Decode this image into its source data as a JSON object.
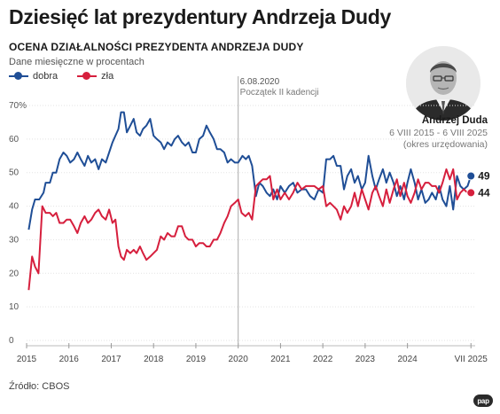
{
  "title": "Dziesięć lat prezydentury Andrzeja Dudy",
  "subtitle": "OCENA DZIAŁALNOŚCI PREZYDENTA ANDRZEJA DUDY",
  "note": "Dane miesięczne w procentach",
  "legend": [
    {
      "label": "dobra",
      "color": "#1f4e96"
    },
    {
      "label": "zła",
      "color": "#d61f3d"
    }
  ],
  "person": {
    "name": "Andrzej Duda",
    "term": "6 VIII 2015 - 6 VIII 2025",
    "office": "(okres urzędowania)"
  },
  "source": "Źródło: CBOS",
  "agency_logo": "pap",
  "chart_data": {
    "type": "line",
    "ylim": [
      0,
      70
    ],
    "yticks": [
      0,
      10,
      20,
      30,
      40,
      50,
      60,
      70
    ],
    "ytick_labels": [
      "0",
      "10",
      "20",
      "30",
      "40",
      "50",
      "60",
      "70%"
    ],
    "xlim": [
      2015.0,
      2025.6
    ],
    "xticks": [
      {
        "label": "2015",
        "x": 2015.0
      },
      {
        "label": "2016",
        "x": 2016.0
      },
      {
        "label": "2017",
        "x": 2017.0
      },
      {
        "label": "2018",
        "x": 2018.0
      },
      {
        "label": "2019",
        "x": 2019.0
      },
      {
        "label": "2020",
        "x": 2020.0
      },
      {
        "label": "2021",
        "x": 2021.0
      },
      {
        "label": "2022",
        "x": 2022.0
      },
      {
        "label": "2023",
        "x": 2023.0
      },
      {
        "label": "2024",
        "x": 2024.0
      },
      {
        "label": "VII 2025",
        "x": 2025.5
      }
    ],
    "annotation": {
      "date": "6.08.2020",
      "text": "Początek II kadencji",
      "x": 2020.0
    },
    "series": [
      {
        "name": "dobra",
        "color": "#1f4e96",
        "end_label": "49",
        "points": [
          [
            2015.05,
            33
          ],
          [
            2015.13,
            39
          ],
          [
            2015.2,
            42
          ],
          [
            2015.3,
            42
          ],
          [
            2015.4,
            44
          ],
          [
            2015.45,
            47
          ],
          [
            2015.55,
            47
          ],
          [
            2015.62,
            50
          ],
          [
            2015.7,
            50
          ],
          [
            2015.78,
            54
          ],
          [
            2015.87,
            56
          ],
          [
            2015.95,
            55
          ],
          [
            2016.03,
            53
          ],
          [
            2016.12,
            54
          ],
          [
            2016.2,
            56
          ],
          [
            2016.28,
            54
          ],
          [
            2016.37,
            52
          ],
          [
            2016.45,
            55
          ],
          [
            2016.53,
            53
          ],
          [
            2016.62,
            54
          ],
          [
            2016.7,
            51
          ],
          [
            2016.78,
            54
          ],
          [
            2016.87,
            53
          ],
          [
            2016.95,
            56
          ],
          [
            2017.03,
            59
          ],
          [
            2017.1,
            61
          ],
          [
            2017.17,
            63
          ],
          [
            2017.23,
            68
          ],
          [
            2017.3,
            68
          ],
          [
            2017.37,
            62
          ],
          [
            2017.45,
            64
          ],
          [
            2017.53,
            66
          ],
          [
            2017.6,
            62
          ],
          [
            2017.68,
            61
          ],
          [
            2017.75,
            63
          ],
          [
            2017.83,
            64
          ],
          [
            2017.92,
            66
          ],
          [
            2018.0,
            61
          ],
          [
            2018.08,
            60
          ],
          [
            2018.17,
            59
          ],
          [
            2018.25,
            57
          ],
          [
            2018.33,
            59
          ],
          [
            2018.42,
            58
          ],
          [
            2018.5,
            60
          ],
          [
            2018.58,
            61
          ],
          [
            2018.67,
            59
          ],
          [
            2018.75,
            58
          ],
          [
            2018.83,
            59
          ],
          [
            2018.92,
            56
          ],
          [
            2019.0,
            56
          ],
          [
            2019.08,
            60
          ],
          [
            2019.17,
            61
          ],
          [
            2019.25,
            64
          ],
          [
            2019.33,
            62
          ],
          [
            2019.42,
            60
          ],
          [
            2019.5,
            57
          ],
          [
            2019.58,
            57
          ],
          [
            2019.67,
            56
          ],
          [
            2019.75,
            53
          ],
          [
            2019.83,
            54
          ],
          [
            2019.92,
            53
          ],
          [
            2020.0,
            53
          ],
          [
            2020.1,
            55
          ],
          [
            2020.18,
            54
          ],
          [
            2020.25,
            55
          ],
          [
            2020.33,
            52
          ],
          [
            2020.42,
            43
          ],
          [
            2020.5,
            47
          ],
          [
            2020.58,
            46
          ],
          [
            2020.67,
            44
          ],
          [
            2020.75,
            43
          ],
          [
            2020.83,
            45
          ],
          [
            2020.92,
            42
          ],
          [
            2021.0,
            46
          ],
          [
            2021.1,
            44
          ],
          [
            2021.2,
            46
          ],
          [
            2021.3,
            47
          ],
          [
            2021.4,
            44
          ],
          [
            2021.5,
            45
          ],
          [
            2021.6,
            45
          ],
          [
            2021.7,
            43
          ],
          [
            2021.8,
            42
          ],
          [
            2021.9,
            45
          ],
          [
            2022.0,
            44
          ],
          [
            2022.08,
            54
          ],
          [
            2022.17,
            54
          ],
          [
            2022.25,
            55
          ],
          [
            2022.33,
            52
          ],
          [
            2022.42,
            52
          ],
          [
            2022.5,
            45
          ],
          [
            2022.58,
            49
          ],
          [
            2022.67,
            51
          ],
          [
            2022.75,
            47
          ],
          [
            2022.83,
            49
          ],
          [
            2022.92,
            45
          ],
          [
            2023.0,
            47
          ],
          [
            2023.08,
            55
          ],
          [
            2023.17,
            49
          ],
          [
            2023.25,
            45
          ],
          [
            2023.33,
            48
          ],
          [
            2023.42,
            51
          ],
          [
            2023.5,
            47
          ],
          [
            2023.58,
            50
          ],
          [
            2023.67,
            47
          ],
          [
            2023.75,
            43
          ],
          [
            2023.83,
            46
          ],
          [
            2023.92,
            42
          ],
          [
            2024.0,
            47
          ],
          [
            2024.08,
            51
          ],
          [
            2024.17,
            47
          ],
          [
            2024.25,
            42
          ],
          [
            2024.33,
            45
          ],
          [
            2024.42,
            41
          ],
          [
            2024.5,
            42
          ],
          [
            2024.58,
            44
          ],
          [
            2024.67,
            42
          ],
          [
            2024.75,
            46
          ],
          [
            2024.83,
            42
          ],
          [
            2024.92,
            40
          ],
          [
            2025.0,
            46
          ],
          [
            2025.08,
            39
          ],
          [
            2025.17,
            49
          ],
          [
            2025.25,
            46
          ],
          [
            2025.33,
            45
          ],
          [
            2025.42,
            46
          ],
          [
            2025.5,
            49
          ]
        ]
      },
      {
        "name": "zła",
        "color": "#d61f3d",
        "end_label": "44",
        "points": [
          [
            2015.05,
            15
          ],
          [
            2015.13,
            25
          ],
          [
            2015.2,
            22
          ],
          [
            2015.28,
            20
          ],
          [
            2015.37,
            40
          ],
          [
            2015.45,
            38
          ],
          [
            2015.55,
            38
          ],
          [
            2015.62,
            37
          ],
          [
            2015.7,
            38
          ],
          [
            2015.78,
            35
          ],
          [
            2015.87,
            35
          ],
          [
            2015.95,
            36
          ],
          [
            2016.03,
            36
          ],
          [
            2016.12,
            34
          ],
          [
            2016.2,
            32
          ],
          [
            2016.28,
            35
          ],
          [
            2016.37,
            37
          ],
          [
            2016.45,
            35
          ],
          [
            2016.53,
            36
          ],
          [
            2016.62,
            38
          ],
          [
            2016.7,
            39
          ],
          [
            2016.78,
            37
          ],
          [
            2016.87,
            36
          ],
          [
            2016.95,
            39
          ],
          [
            2017.03,
            35
          ],
          [
            2017.1,
            36
          ],
          [
            2017.17,
            28
          ],
          [
            2017.23,
            25
          ],
          [
            2017.3,
            24
          ],
          [
            2017.37,
            27
          ],
          [
            2017.45,
            26
          ],
          [
            2017.53,
            27
          ],
          [
            2017.6,
            26
          ],
          [
            2017.68,
            28
          ],
          [
            2017.75,
            26
          ],
          [
            2017.83,
            24
          ],
          [
            2017.92,
            25
          ],
          [
            2018.0,
            26
          ],
          [
            2018.08,
            27
          ],
          [
            2018.17,
            31
          ],
          [
            2018.25,
            30
          ],
          [
            2018.33,
            32
          ],
          [
            2018.42,
            31
          ],
          [
            2018.5,
            31
          ],
          [
            2018.58,
            34
          ],
          [
            2018.67,
            34
          ],
          [
            2018.75,
            31
          ],
          [
            2018.83,
            30
          ],
          [
            2018.92,
            30
          ],
          [
            2019.0,
            28
          ],
          [
            2019.08,
            29
          ],
          [
            2019.17,
            29
          ],
          [
            2019.25,
            28
          ],
          [
            2019.33,
            28
          ],
          [
            2019.42,
            30
          ],
          [
            2019.5,
            30
          ],
          [
            2019.58,
            32
          ],
          [
            2019.67,
            35
          ],
          [
            2019.75,
            37
          ],
          [
            2019.83,
            40
          ],
          [
            2019.92,
            41
          ],
          [
            2020.0,
            42
          ],
          [
            2020.08,
            38
          ],
          [
            2020.17,
            37
          ],
          [
            2020.25,
            38
          ],
          [
            2020.33,
            36
          ],
          [
            2020.42,
            46
          ],
          [
            2020.5,
            47
          ],
          [
            2020.58,
            48
          ],
          [
            2020.67,
            48
          ],
          [
            2020.75,
            49
          ],
          [
            2020.83,
            42
          ],
          [
            2020.92,
            45
          ],
          [
            2021.0,
            42
          ],
          [
            2021.1,
            44
          ],
          [
            2021.2,
            42
          ],
          [
            2021.3,
            44
          ],
          [
            2021.4,
            47
          ],
          [
            2021.5,
            45
          ],
          [
            2021.6,
            46
          ],
          [
            2021.7,
            46
          ],
          [
            2021.8,
            46
          ],
          [
            2021.9,
            45
          ],
          [
            2022.0,
            46
          ],
          [
            2022.08,
            40
          ],
          [
            2022.17,
            41
          ],
          [
            2022.25,
            40
          ],
          [
            2022.33,
            39
          ],
          [
            2022.42,
            36
          ],
          [
            2022.5,
            40
          ],
          [
            2022.58,
            38
          ],
          [
            2022.67,
            40
          ],
          [
            2022.75,
            44
          ],
          [
            2022.83,
            40
          ],
          [
            2022.92,
            45
          ],
          [
            2023.0,
            42
          ],
          [
            2023.08,
            39
          ],
          [
            2023.17,
            44
          ],
          [
            2023.25,
            46
          ],
          [
            2023.33,
            43
          ],
          [
            2023.42,
            40
          ],
          [
            2023.5,
            45
          ],
          [
            2023.58,
            41
          ],
          [
            2023.67,
            45
          ],
          [
            2023.75,
            48
          ],
          [
            2023.83,
            43
          ],
          [
            2023.92,
            47
          ],
          [
            2024.0,
            43
          ],
          [
            2024.08,
            41
          ],
          [
            2024.17,
            44
          ],
          [
            2024.25,
            48
          ],
          [
            2024.33,
            45
          ],
          [
            2024.42,
            47
          ],
          [
            2024.5,
            47
          ],
          [
            2024.58,
            46
          ],
          [
            2024.67,
            46
          ],
          [
            2024.75,
            44
          ],
          [
            2024.83,
            47
          ],
          [
            2024.92,
            51
          ],
          [
            2025.0,
            48
          ],
          [
            2025.08,
            51
          ],
          [
            2025.17,
            42
          ],
          [
            2025.25,
            44
          ],
          [
            2025.33,
            45
          ],
          [
            2025.42,
            44
          ],
          [
            2025.5,
            44
          ]
        ]
      }
    ]
  }
}
